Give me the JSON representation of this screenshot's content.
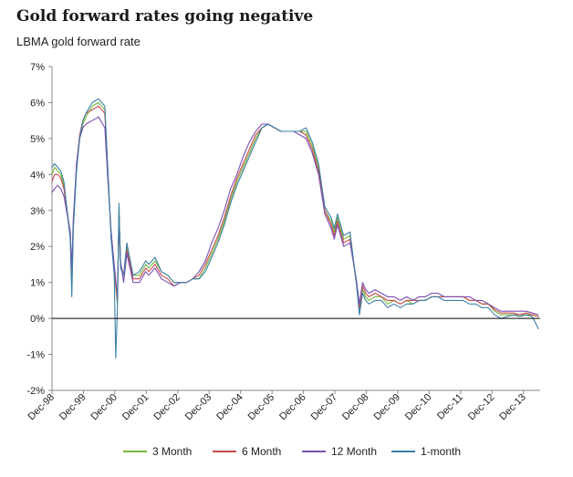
{
  "colors": {
    "3_month": "#76b83a",
    "6_month": "#c94a4a",
    "12_month": "#7b4fb0",
    "1_month": "#3c7fa6",
    "axis": "#888888",
    "zero_line": "#000000"
  },
  "chart_data": {
    "type": "line",
    "title": "Gold forward rates going negative",
    "subtitle": "LBMA gold forward rate",
    "xlabel": "",
    "ylabel": "",
    "ylim": [
      -2,
      7
    ],
    "yticks": [
      -2,
      -1,
      0,
      1,
      2,
      3,
      4,
      5,
      6,
      7
    ],
    "ytick_labels": [
      "-2%",
      "-1%",
      "0%",
      "1%",
      "2%",
      "3%",
      "4%",
      "5%",
      "6%",
      "7%"
    ],
    "xlim": [
      1998.92,
      2014.45
    ],
    "xticks": [
      1998.92,
      1999.92,
      2000.92,
      2001.92,
      2002.92,
      2003.92,
      2004.92,
      2005.92,
      2006.92,
      2007.92,
      2008.92,
      2009.92,
      2010.92,
      2011.92,
      2012.92,
      2013.92
    ],
    "xtick_labels": [
      "Dec-98",
      "Dec-99",
      "Dec-00",
      "Dec-01",
      "Dec-02",
      "Dec-03",
      "Dec-04",
      "Dec-05",
      "Dec-06",
      "Dec-07",
      "Dec-08",
      "Dec-09",
      "Dec-10",
      "Dec-11",
      "Dec-12",
      "Dec-13"
    ],
    "legend_position": "bottom",
    "series": [
      {
        "name": "3 Month",
        "color_key": "3_month",
        "x": [
          1998.92,
          1999.0,
          1999.1,
          1999.2,
          1999.3,
          1999.4,
          1999.5,
          1999.55,
          1999.6,
          1999.7,
          1999.8,
          1999.9,
          2000.0,
          2000.2,
          2000.4,
          2000.6,
          2000.7,
          2000.8,
          2000.9,
          2001.0,
          2001.05,
          2001.1,
          2001.2,
          2001.3,
          2001.5,
          2001.7,
          2001.9,
          2002.0,
          2002.2,
          2002.4,
          2002.6,
          2002.8,
          2003.0,
          2003.2,
          2003.4,
          2003.6,
          2003.8,
          2004.0,
          2004.2,
          2004.4,
          2004.6,
          2004.8,
          2005.0,
          2005.2,
          2005.4,
          2005.6,
          2005.8,
          2006.0,
          2006.2,
          2006.4,
          2006.6,
          2006.8,
          2007.0,
          2007.2,
          2007.4,
          2007.6,
          2007.8,
          2007.9,
          2008.0,
          2008.2,
          2008.4,
          2008.6,
          2008.7,
          2008.8,
          2008.9,
          2009.0,
          2009.2,
          2009.4,
          2009.6,
          2009.8,
          2010.0,
          2010.2,
          2010.4,
          2010.6,
          2010.8,
          2011.0,
          2011.2,
          2011.4,
          2011.6,
          2011.8,
          2012.0,
          2012.2,
          2012.4,
          2012.6,
          2012.8,
          2013.0,
          2013.2,
          2013.4,
          2013.6,
          2013.8,
          2014.0,
          2014.2,
          2014.4
        ],
        "values": [
          4.0,
          4.2,
          4.1,
          4.0,
          3.7,
          3.0,
          2.3,
          1.0,
          2.6,
          4.2,
          5.0,
          5.4,
          5.6,
          5.9,
          6.0,
          5.8,
          4.0,
          2.3,
          1.3,
          0.4,
          3.0,
          1.5,
          1.2,
          2.0,
          1.2,
          1.2,
          1.5,
          1.4,
          1.6,
          1.3,
          1.2,
          1.0,
          1.0,
          1.0,
          1.1,
          1.1,
          1.4,
          1.8,
          2.2,
          2.7,
          3.3,
          3.8,
          4.2,
          4.6,
          5.0,
          5.3,
          5.4,
          5.3,
          5.2,
          5.2,
          5.2,
          5.2,
          5.2,
          4.8,
          4.2,
          3.0,
          2.7,
          2.4,
          2.8,
          2.2,
          2.3,
          1.0,
          0.2,
          0.8,
          0.6,
          0.5,
          0.6,
          0.6,
          0.4,
          0.5,
          0.4,
          0.5,
          0.4,
          0.5,
          0.5,
          0.6,
          0.6,
          0.6,
          0.6,
          0.6,
          0.6,
          0.5,
          0.5,
          0.4,
          0.4,
          0.2,
          0.1,
          0.1,
          0.1,
          0.1,
          0.1,
          0.1,
          0.05
        ]
      },
      {
        "name": "6 Month",
        "color_key": "6_month",
        "x": [
          1998.92,
          1999.0,
          1999.1,
          1999.2,
          1999.3,
          1999.4,
          1999.5,
          1999.55,
          1999.6,
          1999.7,
          1999.8,
          1999.9,
          2000.0,
          2000.2,
          2000.4,
          2000.6,
          2000.7,
          2000.8,
          2000.9,
          2001.0,
          2001.05,
          2001.1,
          2001.2,
          2001.3,
          2001.5,
          2001.7,
          2001.9,
          2002.0,
          2002.2,
          2002.4,
          2002.6,
          2002.8,
          2003.0,
          2003.2,
          2003.4,
          2003.6,
          2003.8,
          2004.0,
          2004.2,
          2004.4,
          2004.6,
          2004.8,
          2005.0,
          2005.2,
          2005.4,
          2005.6,
          2005.8,
          2006.0,
          2006.2,
          2006.4,
          2006.6,
          2006.8,
          2007.0,
          2007.2,
          2007.4,
          2007.6,
          2007.8,
          2007.9,
          2008.0,
          2008.2,
          2008.4,
          2008.6,
          2008.7,
          2008.8,
          2008.9,
          2009.0,
          2009.2,
          2009.4,
          2009.6,
          2009.8,
          2010.0,
          2010.2,
          2010.4,
          2010.6,
          2010.8,
          2011.0,
          2011.2,
          2011.4,
          2011.6,
          2011.8,
          2012.0,
          2012.2,
          2012.4,
          2012.6,
          2012.8,
          2013.0,
          2013.2,
          2013.4,
          2013.6,
          2013.8,
          2014.0,
          2014.2,
          2014.4
        ],
        "values": [
          3.8,
          4.0,
          4.0,
          3.9,
          3.6,
          3.0,
          2.4,
          1.2,
          2.7,
          4.3,
          5.1,
          5.5,
          5.7,
          5.8,
          5.9,
          5.7,
          4.0,
          2.4,
          1.4,
          0.5,
          2.9,
          1.5,
          1.2,
          1.9,
          1.1,
          1.1,
          1.4,
          1.3,
          1.5,
          1.2,
          1.1,
          0.9,
          1.0,
          1.0,
          1.1,
          1.2,
          1.5,
          1.9,
          2.3,
          2.8,
          3.4,
          3.9,
          4.3,
          4.7,
          5.1,
          5.3,
          5.4,
          5.3,
          5.2,
          5.2,
          5.2,
          5.2,
          5.1,
          4.7,
          4.1,
          3.0,
          2.6,
          2.3,
          2.7,
          2.1,
          2.2,
          1.0,
          0.3,
          0.9,
          0.7,
          0.6,
          0.7,
          0.6,
          0.5,
          0.5,
          0.4,
          0.5,
          0.5,
          0.5,
          0.5,
          0.6,
          0.6,
          0.6,
          0.6,
          0.6,
          0.6,
          0.5,
          0.5,
          0.4,
          0.4,
          0.25,
          0.15,
          0.15,
          0.15,
          0.1,
          0.15,
          0.1,
          0.05
        ]
      },
      {
        "name": "12 Month",
        "color_key": "12_month",
        "x": [
          1998.92,
          1999.0,
          1999.1,
          1999.2,
          1999.3,
          1999.4,
          1999.5,
          1999.55,
          1999.6,
          1999.7,
          1999.8,
          1999.9,
          2000.0,
          2000.2,
          2000.4,
          2000.6,
          2000.7,
          2000.8,
          2000.9,
          2001.0,
          2001.05,
          2001.1,
          2001.2,
          2001.3,
          2001.5,
          2001.7,
          2001.9,
          2002.0,
          2002.2,
          2002.4,
          2002.6,
          2002.8,
          2003.0,
          2003.2,
          2003.4,
          2003.6,
          2003.8,
          2004.0,
          2004.2,
          2004.4,
          2004.6,
          2004.8,
          2005.0,
          2005.2,
          2005.4,
          2005.6,
          2005.8,
          2006.0,
          2006.2,
          2006.4,
          2006.6,
          2006.8,
          2007.0,
          2007.2,
          2007.4,
          2007.6,
          2007.8,
          2007.9,
          2008.0,
          2008.2,
          2008.4,
          2008.6,
          2008.7,
          2008.8,
          2008.9,
          2009.0,
          2009.2,
          2009.4,
          2009.6,
          2009.8,
          2010.0,
          2010.2,
          2010.4,
          2010.6,
          2010.8,
          2011.0,
          2011.2,
          2011.4,
          2011.6,
          2011.8,
          2012.0,
          2012.2,
          2012.4,
          2012.6,
          2012.8,
          2013.0,
          2013.2,
          2013.4,
          2013.6,
          2013.8,
          2014.0,
          2014.2,
          2014.4
        ],
        "values": [
          3.5,
          3.6,
          3.7,
          3.6,
          3.4,
          2.9,
          2.4,
          1.4,
          2.8,
          4.3,
          5.0,
          5.3,
          5.4,
          5.5,
          5.6,
          5.3,
          3.8,
          2.4,
          1.5,
          0.6,
          2.8,
          1.6,
          1.0,
          1.8,
          1.0,
          1.0,
          1.3,
          1.2,
          1.4,
          1.1,
          1.0,
          0.9,
          1.0,
          1.0,
          1.1,
          1.3,
          1.6,
          2.1,
          2.5,
          3.0,
          3.6,
          4.0,
          4.5,
          4.9,
          5.2,
          5.4,
          5.4,
          5.3,
          5.2,
          5.2,
          5.2,
          5.1,
          5.0,
          4.6,
          4.0,
          2.9,
          2.5,
          2.2,
          2.6,
          2.0,
          2.1,
          1.1,
          0.4,
          1.0,
          0.8,
          0.7,
          0.8,
          0.7,
          0.6,
          0.6,
          0.5,
          0.6,
          0.5,
          0.6,
          0.6,
          0.7,
          0.7,
          0.6,
          0.6,
          0.6,
          0.6,
          0.6,
          0.5,
          0.5,
          0.4,
          0.3,
          0.2,
          0.2,
          0.2,
          0.2,
          0.2,
          0.15,
          0.1
        ]
      },
      {
        "name": "1-month",
        "color_key": "1_month",
        "x": [
          1998.92,
          1999.0,
          1999.1,
          1999.2,
          1999.3,
          1999.4,
          1999.5,
          1999.55,
          1999.6,
          1999.7,
          1999.8,
          1999.9,
          2000.0,
          2000.2,
          2000.4,
          2000.6,
          2000.7,
          2000.8,
          2000.9,
          2000.95,
          2001.0,
          2001.05,
          2001.1,
          2001.2,
          2001.3,
          2001.5,
          2001.7,
          2001.9,
          2002.0,
          2002.2,
          2002.4,
          2002.6,
          2002.8,
          2003.0,
          2003.2,
          2003.4,
          2003.6,
          2003.8,
          2004.0,
          2004.2,
          2004.4,
          2004.6,
          2004.8,
          2005.0,
          2005.2,
          2005.4,
          2005.6,
          2005.8,
          2006.0,
          2006.2,
          2006.4,
          2006.6,
          2006.8,
          2007.0,
          2007.2,
          2007.4,
          2007.6,
          2007.8,
          2007.9,
          2008.0,
          2008.2,
          2008.4,
          2008.6,
          2008.7,
          2008.8,
          2008.9,
          2009.0,
          2009.2,
          2009.4,
          2009.6,
          2009.8,
          2010.0,
          2010.2,
          2010.4,
          2010.6,
          2010.8,
          2011.0,
          2011.2,
          2011.4,
          2011.6,
          2011.8,
          2012.0,
          2012.2,
          2012.4,
          2012.6,
          2012.8,
          2013.0,
          2013.2,
          2013.4,
          2013.6,
          2013.8,
          2014.0,
          2014.2,
          2014.4
        ],
        "values": [
          4.2,
          4.3,
          4.2,
          4.1,
          3.8,
          3.0,
          2.2,
          0.6,
          2.5,
          4.1,
          5.0,
          5.5,
          5.7,
          6.0,
          6.1,
          5.9,
          4.1,
          2.2,
          1.2,
          -1.1,
          0.3,
          3.2,
          1.4,
          1.2,
          2.1,
          1.2,
          1.3,
          1.6,
          1.5,
          1.7,
          1.3,
          1.2,
          1.0,
          1.0,
          1.0,
          1.1,
          1.1,
          1.3,
          1.7,
          2.1,
          2.6,
          3.2,
          3.7,
          4.1,
          4.5,
          4.9,
          5.3,
          5.4,
          5.3,
          5.2,
          5.2,
          5.2,
          5.2,
          5.3,
          4.9,
          4.3,
          3.1,
          2.8,
          2.5,
          2.9,
          2.3,
          2.4,
          1.0,
          0.1,
          0.7,
          0.5,
          0.4,
          0.5,
          0.5,
          0.3,
          0.4,
          0.3,
          0.4,
          0.4,
          0.5,
          0.5,
          0.6,
          0.6,
          0.5,
          0.5,
          0.5,
          0.5,
          0.4,
          0.4,
          0.3,
          0.3,
          0.1,
          0.0,
          0.05,
          0.1,
          0.05,
          0.1,
          0.05,
          -0.3
        ]
      }
    ]
  }
}
